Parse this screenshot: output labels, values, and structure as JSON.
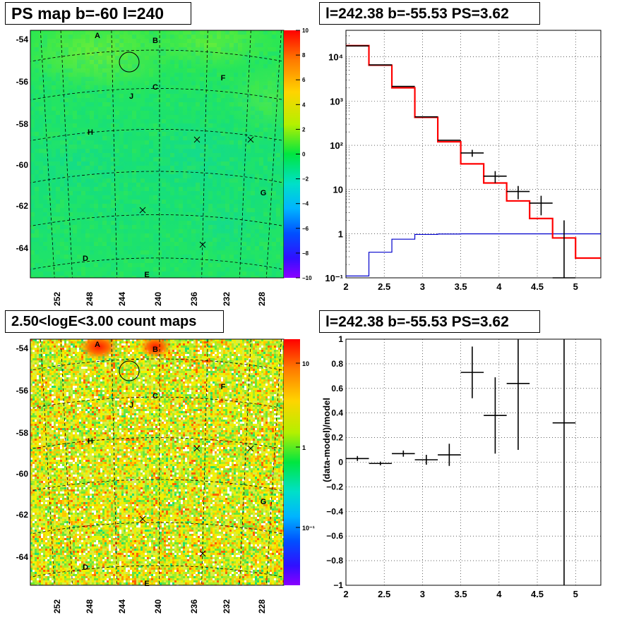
{
  "panels": {
    "tl_title": "PS map b=-60 l=240",
    "tr_title": "l=242.38 b=-55.53 PS=3.62",
    "bl_title": "2.50<logE<3.00 count maps",
    "br_title": "l=242.38 b=-55.53 PS=3.62"
  },
  "chart_data": [
    {
      "type": "heatmap",
      "panel": "top-left",
      "title": "PS map b=-60 l=240",
      "x_ticks": [
        "252",
        "248",
        "244",
        "240",
        "236",
        "232",
        "228"
      ],
      "y_ticks": [
        "-54",
        "-56",
        "-58",
        "-60",
        "-62",
        "-64"
      ],
      "colorbar": {
        "scale": "linear",
        "range": [
          -10,
          10
        ],
        "ticks": [
          "10",
          "8",
          "6",
          "4",
          "2",
          "0",
          "−2",
          "−4",
          "−6",
          "−8",
          "−10"
        ]
      },
      "source_labels": [
        "A",
        "B",
        "C",
        "D",
        "E",
        "F",
        "G",
        "H",
        "J"
      ],
      "markers": [
        "circle",
        "x",
        "x",
        "x",
        "x"
      ]
    },
    {
      "type": "line",
      "panel": "top-right",
      "title": "l=242.38 b=-55.53 PS=3.62",
      "x_ticks": [
        "2",
        "2.5",
        "3",
        "3.5",
        "4",
        "4.5",
        "5"
      ],
      "y_ticks": [
        "10⁻¹",
        "1",
        "10",
        "10²",
        "10³",
        "10⁴"
      ],
      "xlim": [
        2,
        5.33
      ],
      "ylim": [
        0.1,
        40000
      ],
      "yscale": "log",
      "grid": true,
      "bin_edges": [
        2,
        2.3,
        2.6,
        2.9,
        3.2,
        3.5,
        3.8,
        4.1,
        4.4,
        4.7,
        5.0,
        5.33
      ],
      "series": [
        {
          "color": "#ff0000",
          "values": [
            18000,
            6500,
            2000,
            430,
            120,
            38,
            14,
            5.5,
            2.2,
            0.8,
            0.28
          ]
        },
        {
          "color": "#0000cc",
          "values": [
            0.11,
            0.38,
            0.75,
            0.96,
            0.98,
            0.99,
            0.99,
            0.99,
            0.99,
            0.99,
            0.99
          ]
        }
      ],
      "data_points": [
        {
          "x": 2.15,
          "y": 17800
        },
        {
          "x": 2.45,
          "y": 6600
        },
        {
          "x": 2.75,
          "y": 2150
        },
        {
          "x": 3.05,
          "y": 440
        },
        {
          "x": 3.35,
          "y": 130
        },
        {
          "x": 3.65,
          "y": 67,
          "err": 12
        },
        {
          "x": 3.95,
          "y": 20,
          "err": 6
        },
        {
          "x": 4.25,
          "y": 9,
          "err": 3
        },
        {
          "x": 4.55,
          "y": 4.9,
          "err": 2.3
        },
        {
          "x": 4.85,
          "y": 0.1,
          "err_hi": 2.0
        }
      ]
    },
    {
      "type": "heatmap",
      "panel": "bottom-left",
      "title": "2.50<logE<3.00 count maps",
      "x_ticks": [
        "252",
        "248",
        "244",
        "240",
        "236",
        "232",
        "228"
      ],
      "y_ticks": [
        "-54",
        "-56",
        "-58",
        "-60",
        "-62",
        "-64"
      ],
      "colorbar": {
        "scale": "log",
        "ticks": [
          "10",
          "1",
          "10⁻¹"
        ]
      },
      "source_labels": [
        "A",
        "B",
        "C",
        "D",
        "E",
        "F",
        "G",
        "H",
        "J"
      ]
    },
    {
      "type": "scatter",
      "panel": "bottom-right",
      "title": "l=242.38 b=-55.53 PS=3.62",
      "ylabel": "(data-model)/model",
      "x_ticks": [
        "2",
        "2.5",
        "3",
        "3.5",
        "4",
        "4.5",
        "5"
      ],
      "y_ticks": [
        "1",
        "0.8",
        "0.6",
        "0.4",
        "0.2",
        "0",
        "−0.2",
        "−0.4",
        "−0.6",
        "−0.8",
        "−1"
      ],
      "xlim": [
        2,
        5.33
      ],
      "ylim": [
        -1,
        1
      ],
      "grid": true,
      "points": [
        {
          "x": 2.15,
          "y": 0.03,
          "err": 0.02
        },
        {
          "x": 2.45,
          "y": -0.01,
          "err": 0.015
        },
        {
          "x": 2.75,
          "y": 0.07,
          "err": 0.025
        },
        {
          "x": 3.05,
          "y": 0.02,
          "err": 0.04
        },
        {
          "x": 3.35,
          "y": 0.06,
          "err": 0.09
        },
        {
          "x": 3.65,
          "y": 0.73,
          "err": 0.21
        },
        {
          "x": 3.95,
          "y": 0.38,
          "err": 0.31
        },
        {
          "x": 4.25,
          "y": 0.64,
          "err": 0.54
        },
        {
          "x": 4.85,
          "y": 0.32,
          "err": 1.5
        }
      ]
    }
  ]
}
